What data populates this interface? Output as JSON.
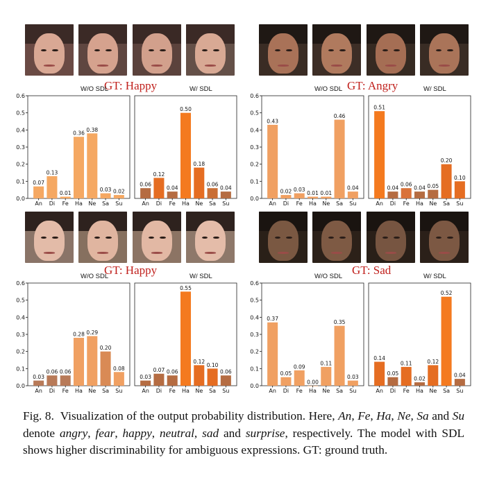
{
  "chart_data": [
    {
      "type": "bar",
      "gt_label": "GT: Happy",
      "categories": [
        "An",
        "Di",
        "Fe",
        "Ha",
        "Ne",
        "Sa",
        "Su"
      ],
      "ylim": [
        0,
        0.6
      ],
      "yticks": [
        "0.0",
        "0.1",
        "0.2",
        "0.3",
        "0.4",
        "0.5",
        "0.6"
      ],
      "subplots": [
        {
          "title": "W/O SDL",
          "values": [
            0.07,
            0.13,
            0.01,
            0.36,
            0.38,
            0.03,
            0.02
          ],
          "labels": [
            "0.07",
            "0.13",
            "0.01",
            "0.36",
            "0.38",
            "0.03",
            "0.02"
          ],
          "colors": [
            "#f5a862",
            "#f5a862",
            "#f5a862",
            "#f5a862",
            "#f5a862",
            "#f5a862",
            "#f5a862"
          ]
        },
        {
          "title": "W/ SDL",
          "values": [
            0.06,
            0.12,
            0.04,
            0.5,
            0.18,
            0.06,
            0.04
          ],
          "labels": [
            "0.06",
            "0.12",
            "0.04",
            "0.50",
            "0.18",
            "0.06",
            "0.04"
          ],
          "colors": [
            "#b56c42",
            "#e56d22",
            "#b56c42",
            "#f47a1f",
            "#e56d22",
            "#c96f36",
            "#b56c42"
          ]
        }
      ]
    },
    {
      "type": "bar",
      "gt_label": "GT: Angry",
      "categories": [
        "An",
        "Di",
        "Fe",
        "Ha",
        "Ne",
        "Sa",
        "Su"
      ],
      "ylim": [
        0,
        0.6
      ],
      "yticks": [
        "0.0",
        "0.1",
        "0.2",
        "0.3",
        "0.4",
        "0.5",
        "0.6"
      ],
      "subplots": [
        {
          "title": "W/O SDL",
          "values": [
            0.43,
            0.02,
            0.03,
            0.01,
            0.01,
            0.46,
            0.04
          ],
          "labels": [
            "0.43",
            "0.02",
            "0.03",
            "0.01",
            "0.01",
            "0.46",
            "0.04"
          ],
          "colors": [
            "#f0a062",
            "#f0a062",
            "#f0a062",
            "#f0a062",
            "#f0a062",
            "#f0a062",
            "#f0a062"
          ]
        },
        {
          "title": "W/ SDL",
          "values": [
            0.51,
            0.04,
            0.06,
            0.04,
            0.05,
            0.2,
            0.1
          ],
          "labels": [
            "0.51",
            "0.04",
            "0.06",
            "0.04",
            "0.05",
            "0.20",
            "0.10"
          ],
          "colors": [
            "#f47a1f",
            "#b56c42",
            "#d9723a",
            "#b56c42",
            "#b56c42",
            "#e56d22",
            "#e56d22"
          ]
        }
      ]
    },
    {
      "type": "bar",
      "gt_label": "GT: Happy",
      "categories": [
        "An",
        "Di",
        "Fe",
        "Ha",
        "Ne",
        "Sa",
        "Su"
      ],
      "ylim": [
        0,
        0.6
      ],
      "yticks": [
        "0.0",
        "0.1",
        "0.2",
        "0.3",
        "0.4",
        "0.5",
        "0.6"
      ],
      "subplots": [
        {
          "title": "W/O SDL",
          "values": [
            0.03,
            0.06,
            0.06,
            0.28,
            0.29,
            0.2,
            0.08
          ],
          "labels": [
            "0.03",
            "0.06",
            "0.06",
            "0.28",
            "0.29",
            "0.20",
            "0.08"
          ],
          "colors": [
            "#b87a58",
            "#b87a58",
            "#b87a58",
            "#f0a062",
            "#f0a062",
            "#d98a55",
            "#f0a062"
          ]
        },
        {
          "title": "W/ SDL",
          "values": [
            0.03,
            0.07,
            0.06,
            0.55,
            0.12,
            0.1,
            0.06
          ],
          "labels": [
            "0.03",
            "0.07",
            "0.06",
            "0.55",
            "0.12",
            "0.10",
            "0.06"
          ],
          "colors": [
            "#b56c42",
            "#b56c42",
            "#b56c42",
            "#f47a1f",
            "#e56d22",
            "#e56d22",
            "#b56c42"
          ]
        }
      ]
    },
    {
      "type": "bar",
      "gt_label": "GT: Sad",
      "categories": [
        "An",
        "Di",
        "Fe",
        "Ha",
        "Ne",
        "Sa",
        "Su"
      ],
      "ylim": [
        0,
        0.6
      ],
      "yticks": [
        "0.0",
        "0.1",
        "0.2",
        "0.3",
        "0.4",
        "0.5",
        "0.6"
      ],
      "subplots": [
        {
          "title": "W/O SDL",
          "values": [
            0.37,
            0.05,
            0.09,
            0.0,
            0.11,
            0.35,
            0.03
          ],
          "labels": [
            "0.37",
            "0.05",
            "0.09",
            "0.00",
            "0.11",
            "0.35",
            "0.03"
          ],
          "colors": [
            "#f0a062",
            "#f0a062",
            "#f0a062",
            "#f0a062",
            "#f0a062",
            "#f0a062",
            "#f0a062"
          ]
        },
        {
          "title": "W/ SDL",
          "values": [
            0.14,
            0.05,
            0.11,
            0.02,
            0.12,
            0.52,
            0.04
          ],
          "labels": [
            "0.14",
            "0.05",
            "0.11",
            "0.02",
            "0.12",
            "0.52",
            "0.04"
          ],
          "colors": [
            "#e56d22",
            "#b56c42",
            "#e56d22",
            "#b56c42",
            "#e56d22",
            "#f47a1f",
            "#b56c42"
          ]
        }
      ]
    }
  ],
  "faces": [
    [
      {
        "skin": "#d9a894",
        "hair": "#3b2a26",
        "bg": "#6a4a44"
      },
      {
        "skin": "#d5a28e",
        "hair": "#3b2a26",
        "bg": "#5f4640"
      },
      {
        "skin": "#d2a08c",
        "hair": "#3a2925",
        "bg": "#5b423c"
      },
      {
        "skin": "#d8a994",
        "hair": "#3b2a26",
        "bg": "#645048"
      }
    ],
    [
      {
        "skin": "#a97258",
        "hair": "#1f1814",
        "bg": "#3a2c24"
      },
      {
        "skin": "#b07a5e",
        "hair": "#1f1814",
        "bg": "#3d2e26"
      },
      {
        "skin": "#a56e54",
        "hair": "#1f1814",
        "bg": "#362a22"
      },
      {
        "skin": "#aa7459",
        "hair": "#1f1814",
        "bg": "#392c24"
      }
    ],
    [
      {
        "skin": "#e3bba8",
        "hair": "#2e221e",
        "bg": "#8a7468"
      },
      {
        "skin": "#e0b5a0",
        "hair": "#2e221e",
        "bg": "#86705f"
      },
      {
        "skin": "#e2b8a4",
        "hair": "#2e221e",
        "bg": "#8c7464"
      },
      {
        "skin": "#e4bca9",
        "hair": "#2e221e",
        "bg": "#8e786a"
      }
    ],
    [
      {
        "skin": "#7a5842",
        "hair": "#1a1410",
        "bg": "#2a2018"
      },
      {
        "skin": "#7e5a44",
        "hair": "#1a1410",
        "bg": "#2c2119"
      },
      {
        "skin": "#775541",
        "hair": "#1a1410",
        "bg": "#291f18"
      },
      {
        "skin": "#7c5843",
        "hair": "#1a1410",
        "bg": "#2b2019"
      }
    ]
  ],
  "caption": {
    "prefix": "Fig. 8.",
    "text1": "Visualization of the output probability distribution. Here, ",
    "an": "An",
    "sep1": ", ",
    "fe": "Fe",
    "sep2": ", ",
    "ha": "Ha",
    "sep3": ", ",
    "ne": "Ne",
    "sep4": ", ",
    "sa": "Sa",
    "and1": " and ",
    "su": "Su",
    "denote": " denote ",
    "angry": "angry",
    "s1": ", ",
    "fear": "fear",
    "s2": ", ",
    "happy": "happy",
    "s3": ", ",
    "neutral": "neutral",
    "s4": ", ",
    "sad": "sad",
    "and2": " and ",
    "surprise": "surprise",
    "text2": ", respectively. The model with SDL shows higher discriminability for ambiguous expressions. GT: ground truth."
  }
}
